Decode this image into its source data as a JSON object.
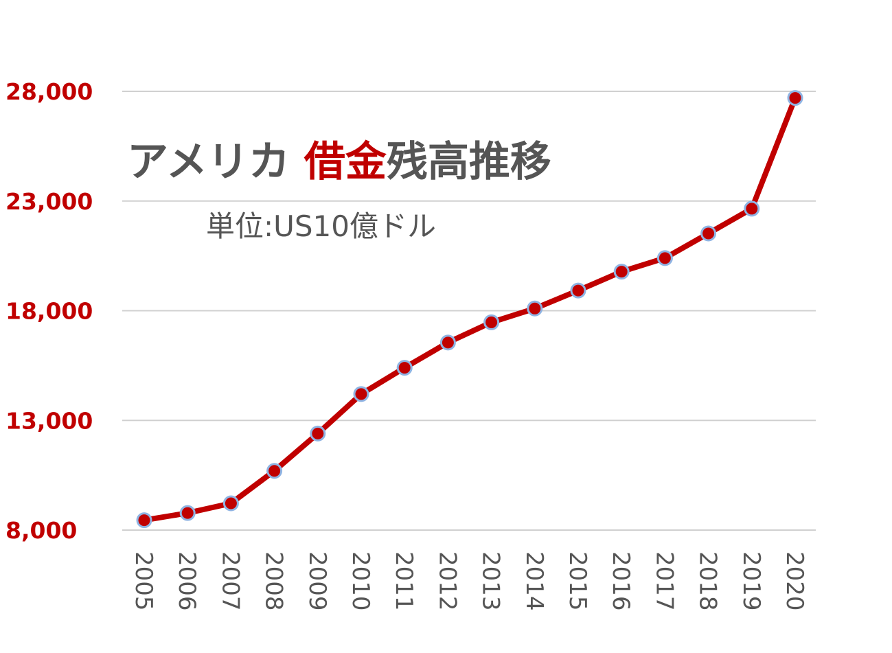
{
  "chart_data": {
    "type": "line",
    "title_parts": [
      "アメリカ ",
      "借金",
      "残高推移"
    ],
    "subtitle": "単位:US10億ドル",
    "x": [
      "2005",
      "2006",
      "2007",
      "2008",
      "2009",
      "2010",
      "2011",
      "2012",
      "2013",
      "2014",
      "2015",
      "2016",
      "2017",
      "2018",
      "2019",
      "2020"
    ],
    "y_ticks": [
      {
        "value": 8000,
        "label": "8,000"
      },
      {
        "value": 13000,
        "label": "13,000"
      },
      {
        "value": 18000,
        "label": "18,000"
      },
      {
        "value": 23000,
        "label": "23,000"
      },
      {
        "value": 28000,
        "label": "28,000"
      }
    ],
    "ylim": [
      8000,
      28000
    ],
    "grid": true,
    "series": [
      {
        "values": [
          8450,
          8780,
          9220,
          10700,
          12400,
          14200,
          15400,
          16550,
          17470,
          18100,
          18920,
          19780,
          20400,
          21520,
          22650,
          27700
        ],
        "color": "#c00000",
        "marker_edge_color": "#8fb4e3"
      }
    ]
  }
}
